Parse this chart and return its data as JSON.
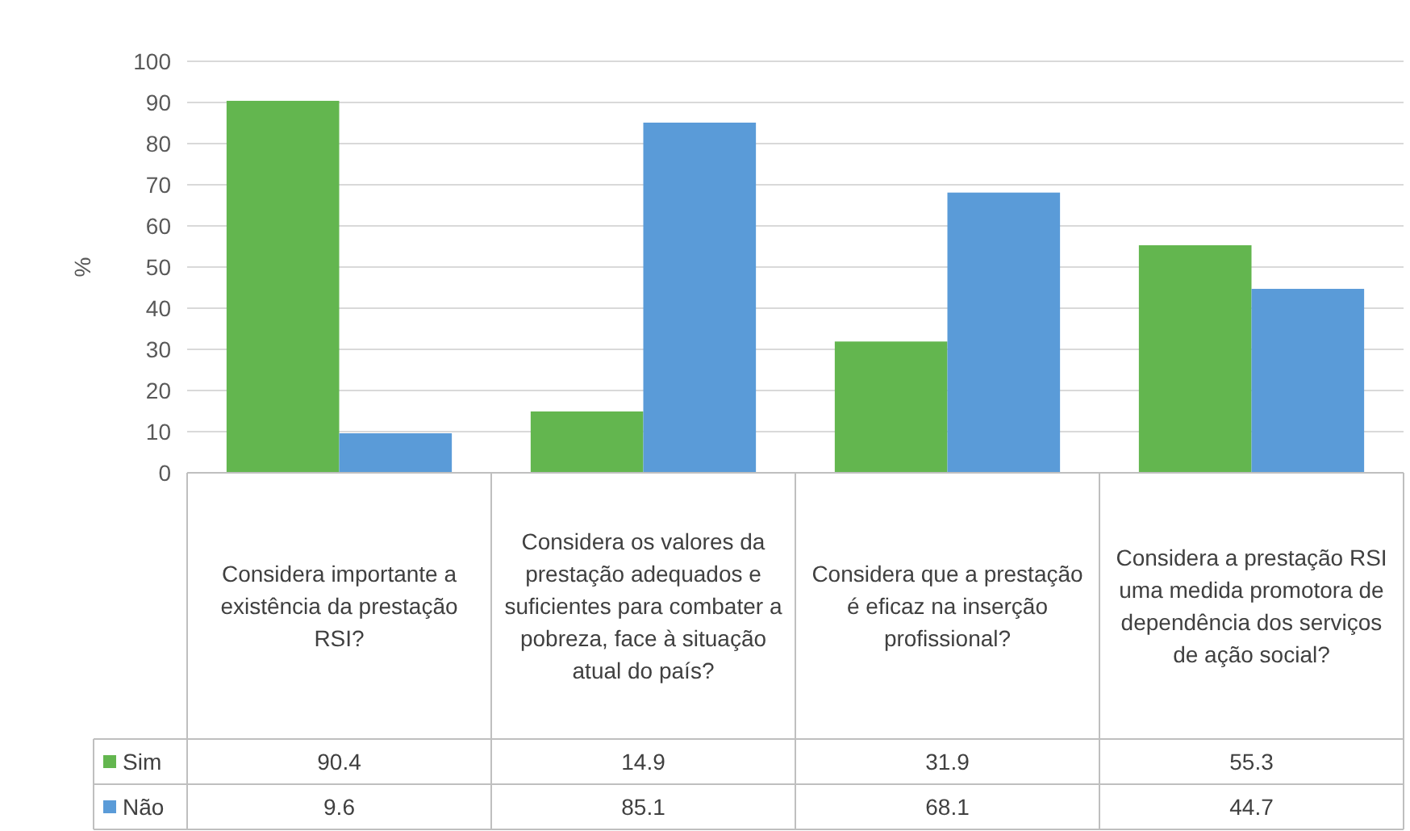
{
  "chart_data": {
    "type": "bar",
    "ylabel": "%",
    "categories": [
      "Considera importante a existência da prestação RSI?",
      "Considera os valores da prestação adequados e suficientes para combater a pobreza, face à situação atual do país?",
      "Considera que a prestação é eficaz na inserção profissional?",
      "Considera a prestação RSI uma medida promotora de dependência dos serviços de ação social?"
    ],
    "series": [
      {
        "name": "Sim",
        "color": "#63b64f",
        "values": [
          90.4,
          14.9,
          31.9,
          55.3
        ]
      },
      {
        "name": "Não",
        "color": "#5a9bd8",
        "values": [
          9.6,
          85.1,
          68.1,
          44.7
        ]
      }
    ],
    "ylim": [
      0,
      100
    ],
    "yticks": [
      0,
      10,
      20,
      30,
      40,
      50,
      60,
      70,
      80,
      90,
      100
    ],
    "grid": "y",
    "legend": "bottom",
    "data_labels": true
  }
}
